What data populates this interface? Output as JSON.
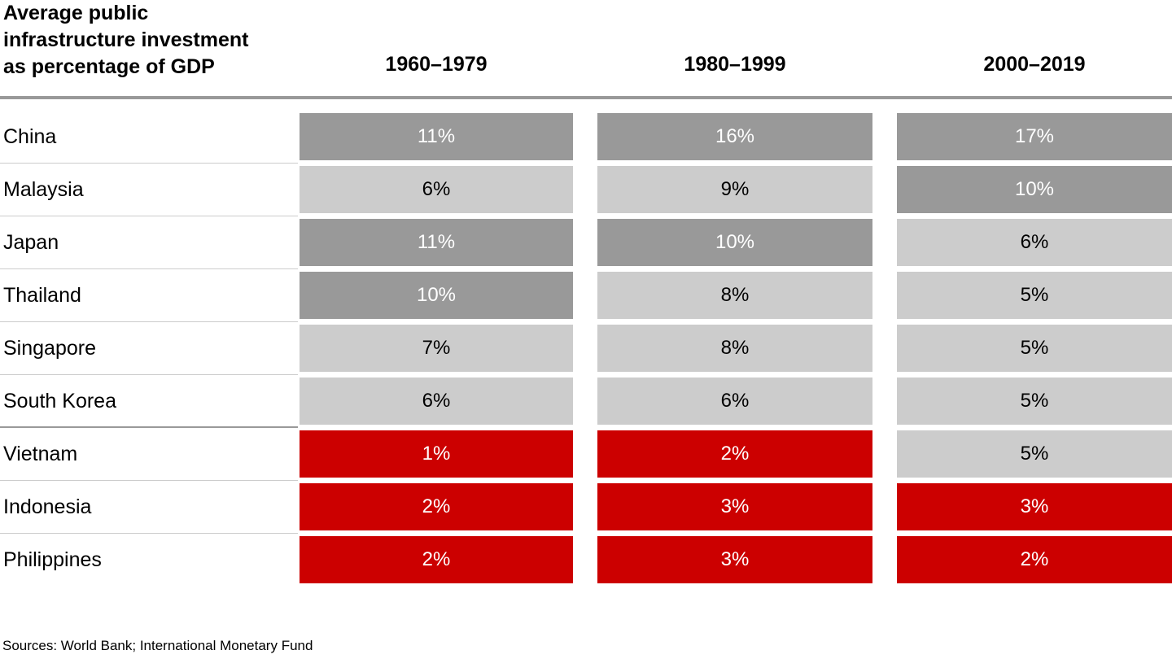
{
  "header": {
    "title": "Average public\ninfrastructure investment\nas percentage of GDP"
  },
  "chart_data": {
    "type": "heatmap",
    "title": "Average public infrastructure investment as percentage of GDP",
    "unit": "percent of GDP",
    "columns": [
      "1960–1979",
      "1980–1999",
      "2000–2019"
    ],
    "rows": [
      {
        "country": "China",
        "values": [
          11,
          16,
          17
        ],
        "labels": [
          "11%",
          "16%",
          "17%"
        ],
        "tones": [
          "dark",
          "dark",
          "dark"
        ]
      },
      {
        "country": "Malaysia",
        "values": [
          6,
          9,
          10
        ],
        "labels": [
          "6%",
          "9%",
          "10%"
        ],
        "tones": [
          "light",
          "light",
          "dark"
        ]
      },
      {
        "country": "Japan",
        "values": [
          11,
          10,
          6
        ],
        "labels": [
          "11%",
          "10%",
          "6%"
        ],
        "tones": [
          "dark",
          "dark",
          "light"
        ]
      },
      {
        "country": "Thailand",
        "values": [
          10,
          8,
          5
        ],
        "labels": [
          "10%",
          "8%",
          "5%"
        ],
        "tones": [
          "dark",
          "light",
          "light"
        ]
      },
      {
        "country": "Singapore",
        "values": [
          7,
          8,
          5
        ],
        "labels": [
          "7%",
          "8%",
          "5%"
        ],
        "tones": [
          "light",
          "light",
          "light"
        ]
      },
      {
        "country": "South Korea",
        "values": [
          6,
          6,
          5
        ],
        "labels": [
          "6%",
          "6%",
          "5%"
        ],
        "tones": [
          "light",
          "light",
          "light"
        ]
      },
      {
        "country": "Vietnam",
        "values": [
          1,
          2,
          5
        ],
        "labels": [
          "1%",
          "2%",
          "5%"
        ],
        "tones": [
          "red",
          "red",
          "light"
        ]
      },
      {
        "country": "Indonesia",
        "values": [
          2,
          3,
          3
        ],
        "labels": [
          "2%",
          "3%",
          "3%"
        ],
        "tones": [
          "red",
          "red",
          "red"
        ]
      },
      {
        "country": "Philippines",
        "values": [
          2,
          3,
          2
        ],
        "labels": [
          "2%",
          "3%",
          "2%"
        ],
        "tones": [
          "red",
          "red",
          "red"
        ]
      }
    ],
    "group_separator_after": "South Korea",
    "colors": {
      "dark_gray": "#999999",
      "light_gray": "#cccccc",
      "red": "#cc0000",
      "header_divider": "#999999",
      "row_separator": "#cccccc"
    },
    "legend_position": "none",
    "grid": "off"
  },
  "footer": {
    "source": "Sources: World Bank; International Monetary Fund"
  }
}
